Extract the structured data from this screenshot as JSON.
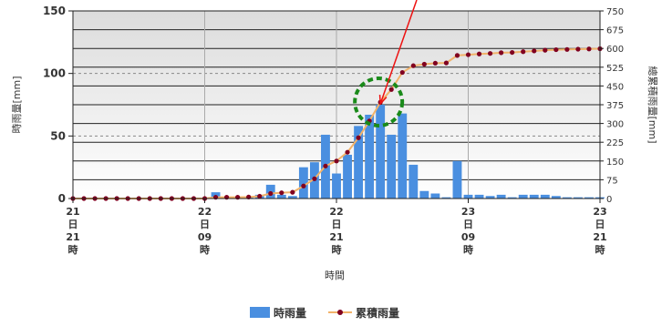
{
  "chart_data": {
    "type": "bar",
    "x_tick_labels": [
      [
        "21",
        "日",
        "21",
        "時"
      ],
      [
        "22",
        "日",
        "09",
        "時"
      ],
      [
        "22",
        "日",
        "21",
        "時"
      ],
      [
        "23",
        "日",
        "09",
        "時"
      ],
      [
        "23",
        "日",
        "21",
        "時"
      ]
    ],
    "xlabel": "時間",
    "ylabel": "時雨量[mm]",
    "y2label": "總累積雨量[mm]",
    "ylim": [
      0,
      150
    ],
    "y2lim": [
      0,
      750
    ],
    "y_ticks": [
      0,
      50,
      100,
      150
    ],
    "y2_ticks": [
      0,
      75,
      150,
      225,
      300,
      375,
      450,
      525,
      600,
      675,
      750
    ],
    "grid": true,
    "legend_position": "bottom",
    "series": [
      {
        "name": "時雨量",
        "type": "bar",
        "color": "#4a8fe0",
        "values": [
          0,
          0,
          0,
          0,
          0,
          0,
          0,
          0,
          0,
          0,
          0,
          0,
          0,
          5,
          0,
          0,
          1,
          3,
          11,
          3,
          2,
          25,
          29,
          51,
          20,
          35,
          58,
          67,
          75,
          51,
          68,
          27,
          6,
          4,
          1,
          30,
          3,
          3,
          2,
          3,
          1,
          3,
          3,
          3,
          2,
          1,
          1,
          1,
          1
        ]
      },
      {
        "name": "累積雨量",
        "type": "line",
        "color": "#800020",
        "line_color": "#f2b36a",
        "values": [
          0,
          0,
          0,
          0,
          0,
          0,
          0,
          0,
          0,
          0,
          0,
          0,
          0,
          5,
          5,
          5,
          6,
          9,
          20,
          23,
          25,
          50,
          79,
          130,
          150,
          185,
          243,
          310,
          385,
          436,
          504,
          531,
          537,
          541,
          542,
          572,
          575,
          578,
          580,
          583,
          584,
          587,
          590,
          593,
          595,
          596,
          597,
          598,
          599
        ]
      }
    ],
    "annotations": {
      "arrow_color": "#ee1111",
      "circle_color": "#1a8a1a",
      "circle_style": "dashed"
    }
  }
}
